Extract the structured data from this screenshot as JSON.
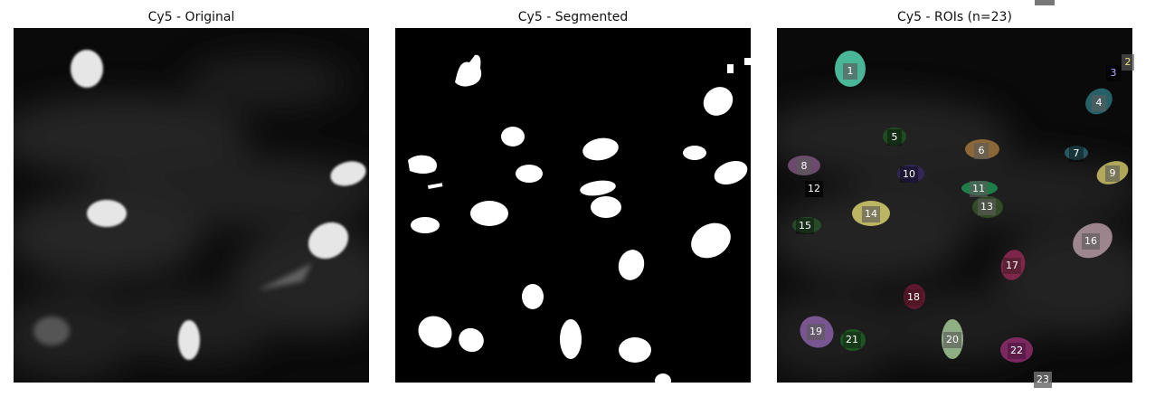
{
  "panels": [
    {
      "id": "original",
      "title": "Cy5 - Original"
    },
    {
      "id": "segmented",
      "title": "Cy5 - Segmented"
    },
    {
      "id": "rois",
      "title": "Cy5 - ROIs (n=23)"
    }
  ],
  "roi_labels": [
    "1",
    "2",
    "3",
    "4",
    "5",
    "6",
    "7",
    "8",
    "9",
    "10",
    "11",
    "12",
    "13",
    "14",
    "15",
    "16",
    "17",
    "18",
    "19",
    "20",
    "21",
    "22",
    "23"
  ],
  "colors": {
    "background": "#ffffff",
    "nucleus": "#ffffff",
    "roi_1": "#5ff0c8",
    "roi_2": "#e8e27a",
    "roi_4": "#2f7f86",
    "roi_6": "#b08040",
    "roi_8": "#8a5a8a",
    "roi_9": "#e6d870",
    "roi_11": "#1e9e55",
    "roi_14": "#f0e878",
    "roi_16": "#c8a8b4",
    "roi_17": "#a02a5a",
    "roi_19": "#9868b8",
    "roi_20": "#b8e0a8",
    "roi_22": "#a0307a"
  }
}
